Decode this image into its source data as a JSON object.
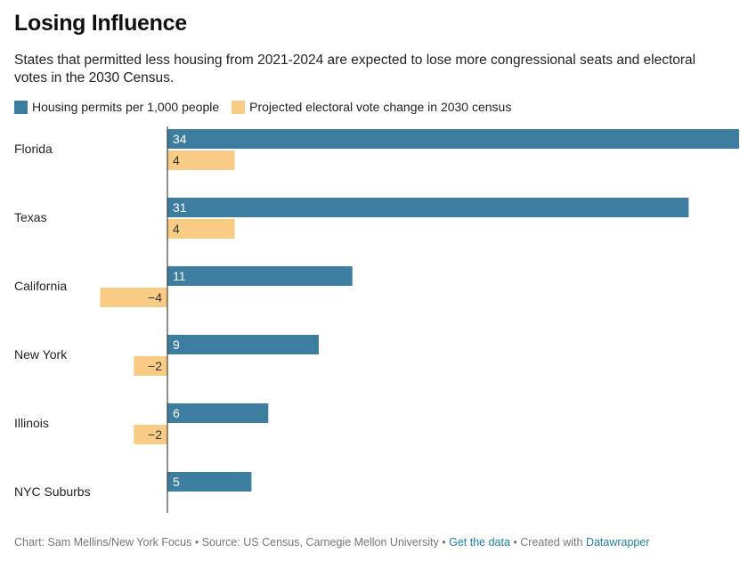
{
  "chart_data": {
    "type": "bar",
    "orientation": "horizontal",
    "title": "Losing Influence",
    "subtitle": "States that permitted less housing from 2021-2024 are expected to lose more congressional seats and electoral votes in the 2030 Census.",
    "categories": [
      "Florida",
      "Texas",
      "California",
      "New York",
      "Illinois",
      "NYC Suburbs"
    ],
    "series": [
      {
        "name": "Housing permits per 1,000 people",
        "color": "#3d7ea0",
        "values": [
          34,
          31,
          11,
          9,
          6,
          5
        ]
      },
      {
        "name": "Projected electoral vote change in 2030 census",
        "color": "#f8cc85",
        "values": [
          4,
          4,
          -4,
          -2,
          -2,
          null
        ]
      }
    ],
    "value_labels": {
      "permits": [
        "34",
        "31",
        "11",
        "9",
        "6",
        "5"
      ],
      "votes": [
        "4",
        "4",
        "−4",
        "−2",
        "−2",
        ""
      ]
    },
    "legend_position": "top-left",
    "grid": false
  },
  "footer": {
    "credit": "Chart: Sam Mellins/New York Focus • Source: US Census, Carnegie Mellon University •",
    "get_data": "Get the data",
    "sep": "• Created with",
    "datawrapper": "Datawrapper"
  }
}
